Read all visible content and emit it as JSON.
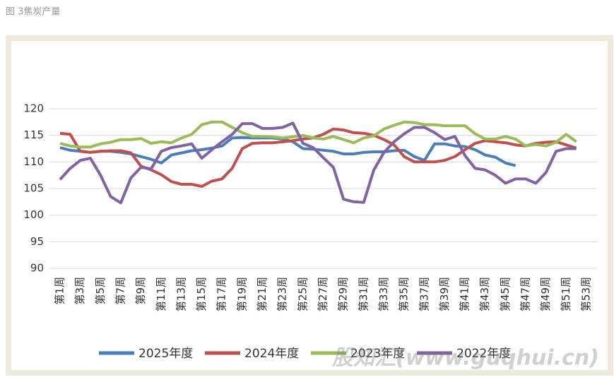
{
  "chart_data": {
    "type": "line",
    "title": "图 3焦炭产量",
    "watermark": "股知汇(www.guqhui.cn)",
    "categories": [
      "第1周",
      null,
      "第3周",
      null,
      "第5周",
      null,
      "第7周",
      null,
      "第9周",
      null,
      "第11周",
      null,
      "第13周",
      null,
      "第15周",
      null,
      "第17周",
      null,
      "第19周",
      null,
      "第21周",
      null,
      "第23周",
      null,
      "第25周",
      null,
      "第27周",
      null,
      "第29周",
      null,
      "第31周",
      null,
      "第33周",
      null,
      "第35周",
      null,
      "第37周",
      null,
      "第39周",
      null,
      "第41周",
      null,
      "第43周",
      null,
      "第45周",
      null,
      "第47周",
      null,
      "第49周",
      null,
      "第51周",
      null,
      "第53周"
    ],
    "ylim": [
      90,
      120
    ],
    "yticks": [
      90,
      95,
      100,
      105,
      110,
      115,
      120
    ],
    "grid": true,
    "legend": "bottom",
    "series": [
      {
        "name": "2025年度",
        "color": "#4a7ebb",
        "values": [
          112.7,
          112.2,
          112.0,
          111.8,
          112.0,
          112.0,
          111.8,
          111.5,
          111.0,
          110.5,
          109.8,
          111.3,
          111.7,
          112.1,
          112.3,
          112.6,
          113.0,
          114.5,
          114.6,
          114.5,
          114.5,
          114.5,
          114.3,
          113.8,
          112.5,
          112.4,
          112.2,
          112.0,
          111.5,
          111.5,
          111.8,
          111.9,
          111.9,
          112.1,
          112.2,
          111.0,
          110.3,
          113.4,
          113.4,
          113.0,
          112.9,
          112.3,
          111.3,
          110.9,
          109.8,
          109.3,
          null,
          null,
          null,
          null,
          null,
          null,
          null
        ]
      },
      {
        "name": "2024年度",
        "color": "#c0504d",
        "values": [
          115.4,
          115.2,
          112.0,
          111.8,
          112.0,
          112.1,
          112.1,
          111.7,
          109.2,
          108.5,
          107.6,
          106.3,
          105.8,
          105.8,
          105.4,
          106.4,
          106.8,
          108.8,
          112.5,
          113.5,
          113.6,
          113.6,
          113.8,
          114.0,
          114.3,
          114.5,
          115.2,
          116.2,
          116.0,
          115.5,
          115.4,
          115.0,
          114.2,
          113.2,
          111.0,
          110.0,
          110.0,
          110.0,
          110.3,
          111.0,
          112.3,
          113.5,
          114.0,
          113.8,
          113.6,
          113.2,
          113.0,
          113.5,
          113.7,
          113.8,
          113.2,
          112.6,
          null
        ]
      },
      {
        "name": "2023年度",
        "color": "#9bbb59",
        "values": [
          113.5,
          113.0,
          112.8,
          112.8,
          113.4,
          113.7,
          114.2,
          114.2,
          114.4,
          113.5,
          113.8,
          113.6,
          114.5,
          115.2,
          117.0,
          117.5,
          117.5,
          116.5,
          115.5,
          114.8,
          114.8,
          114.7,
          114.5,
          114.7,
          115.0,
          114.5,
          114.3,
          114.8,
          114.2,
          113.6,
          114.5,
          114.9,
          116.2,
          116.9,
          117.5,
          117.4,
          117.0,
          117.0,
          116.8,
          116.8,
          116.8,
          115.3,
          114.3,
          114.3,
          114.8,
          114.3,
          113.0,
          113.3,
          113.0,
          113.7,
          115.2,
          113.8,
          null
        ]
      },
      {
        "name": "2022年度",
        "color": "#8064a2",
        "values": [
          106.7,
          108.8,
          110.3,
          110.7,
          107.5,
          103.5,
          102.3,
          107.0,
          109.0,
          108.7,
          112.0,
          112.7,
          113.0,
          113.4,
          110.7,
          112.3,
          113.8,
          115.2,
          117.2,
          117.2,
          116.3,
          116.3,
          116.5,
          117.3,
          113.5,
          112.7,
          110.8,
          109.0,
          103.0,
          102.5,
          102.4,
          108.5,
          111.8,
          113.8,
          115.3,
          116.5,
          116.5,
          115.5,
          114.2,
          114.8,
          111.2,
          108.8,
          108.5,
          107.5,
          106.0,
          106.8,
          106.8,
          106.0,
          108.0,
          112.0,
          112.5,
          112.5,
          null
        ]
      }
    ]
  }
}
